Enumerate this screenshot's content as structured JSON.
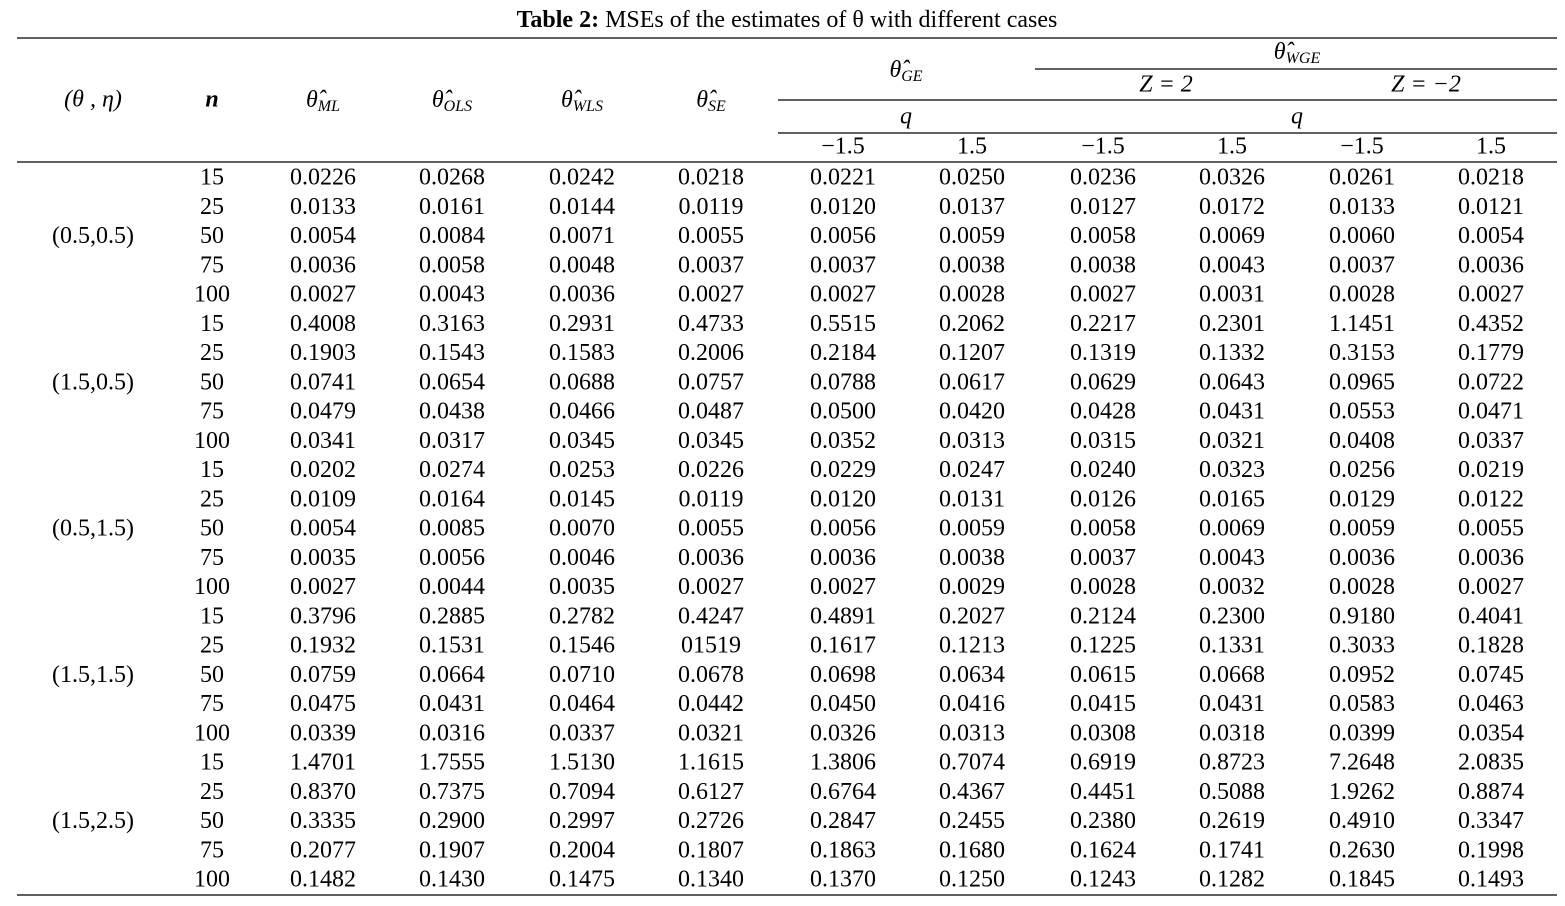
{
  "caption": {
    "label": "Table 2:",
    "text": "MSEs of the estimates of θ with different cases"
  },
  "header": {
    "group_label": "(θ , η)",
    "n": "n",
    "estimators": [
      {
        "symbol": "θ̂",
        "sub": "ML"
      },
      {
        "symbol": "θ̂",
        "sub": "OLS"
      },
      {
        "symbol": "θ̂",
        "sub": "WLS"
      },
      {
        "symbol": "θ̂",
        "sub": "SE"
      }
    ],
    "ge": {
      "symbol": "θ̂",
      "sub": "GE",
      "q": "q",
      "levels": [
        "−1.5",
        "1.5"
      ]
    },
    "wge": {
      "symbol": "θ̂",
      "sub": "WGE",
      "cases": [
        "Z = 2",
        "Z = −2"
      ],
      "q": "q",
      "levels": [
        "−1.5",
        "1.5",
        "−1.5",
        "1.5"
      ]
    }
  },
  "groups": [
    {
      "label": "(0.5,0.5)",
      "rows": [
        [
          "15",
          "0.0226",
          "0.0268",
          "0.0242",
          "0.0218",
          "0.0221",
          "0.0250",
          "0.0236",
          "0.0326",
          "0.0261",
          "0.0218"
        ],
        [
          "25",
          "0.0133",
          "0.0161",
          "0.0144",
          "0.0119",
          "0.0120",
          "0.0137",
          "0.0127",
          "0.0172",
          "0.0133",
          "0.0121"
        ],
        [
          "50",
          "0.0054",
          "0.0084",
          "0.0071",
          "0.0055",
          "0.0056",
          "0.0059",
          "0.0058",
          "0.0069",
          "0.0060",
          "0.0054"
        ],
        [
          "75",
          "0.0036",
          "0.0058",
          "0.0048",
          "0.0037",
          "0.0037",
          "0.0038",
          "0.0038",
          "0.0043",
          "0.0037",
          "0.0036"
        ],
        [
          "100",
          "0.0027",
          "0.0043",
          "0.0036",
          "0.0027",
          "0.0027",
          "0.0028",
          "0.0027",
          "0.0031",
          "0.0028",
          "0.0027"
        ]
      ]
    },
    {
      "label": "(1.5,0.5)",
      "rows": [
        [
          "15",
          "0.4008",
          "0.3163",
          "0.2931",
          "0.4733",
          "0.5515",
          "0.2062",
          "0.2217",
          "0.2301",
          "1.1451",
          "0.4352"
        ],
        [
          "25",
          "0.1903",
          "0.1543",
          "0.1583",
          "0.2006",
          "0.2184",
          "0.1207",
          "0.1319",
          "0.1332",
          "0.3153",
          "0.1779"
        ],
        [
          "50",
          "0.0741",
          "0.0654",
          "0.0688",
          "0.0757",
          "0.0788",
          "0.0617",
          "0.0629",
          "0.0643",
          "0.0965",
          "0.0722"
        ],
        [
          "75",
          "0.0479",
          "0.0438",
          "0.0466",
          "0.0487",
          "0.0500",
          "0.0420",
          "0.0428",
          "0.0431",
          "0.0553",
          "0.0471"
        ],
        [
          "100",
          "0.0341",
          "0.0317",
          "0.0345",
          "0.0345",
          "0.0352",
          "0.0313",
          "0.0315",
          "0.0321",
          "0.0408",
          "0.0337"
        ]
      ]
    },
    {
      "label": "(0.5,1.5)",
      "rows": [
        [
          "15",
          "0.0202",
          "0.0274",
          "0.0253",
          "0.0226",
          "0.0229",
          "0.0247",
          "0.0240",
          "0.0323",
          "0.0256",
          "0.0219"
        ],
        [
          "25",
          "0.0109",
          "0.0164",
          "0.0145",
          "0.0119",
          "0.0120",
          "0.0131",
          "0.0126",
          "0.0165",
          "0.0129",
          "0.0122"
        ],
        [
          "50",
          "0.0054",
          "0.0085",
          "0.0070",
          "0.0055",
          "0.0056",
          "0.0059",
          "0.0058",
          "0.0069",
          "0.0059",
          "0.0055"
        ],
        [
          "75",
          "0.0035",
          "0.0056",
          "0.0046",
          "0.0036",
          "0.0036",
          "0.0038",
          "0.0037",
          "0.0043",
          "0.0036",
          "0.0036"
        ],
        [
          "100",
          "0.0027",
          "0.0044",
          "0.0035",
          "0.0027",
          "0.0027",
          "0.0029",
          "0.0028",
          "0.0032",
          "0.0028",
          "0.0027"
        ]
      ]
    },
    {
      "label": "(1.5,1.5)",
      "rows": [
        [
          "15",
          "0.3796",
          "0.2885",
          "0.2782",
          "0.4247",
          "0.4891",
          "0.2027",
          "0.2124",
          "0.2300",
          "0.9180",
          "0.4041"
        ],
        [
          "25",
          "0.1932",
          "0.1531",
          "0.1546",
          "01519",
          "0.1617",
          "0.1213",
          "0.1225",
          "0.1331",
          "0.3033",
          "0.1828"
        ],
        [
          "50",
          "0.0759",
          "0.0664",
          "0.0710",
          "0.0678",
          "0.0698",
          "0.0634",
          "0.0615",
          "0.0668",
          "0.0952",
          "0.0745"
        ],
        [
          "75",
          "0.0475",
          "0.0431",
          "0.0464",
          "0.0442",
          "0.0450",
          "0.0416",
          "0.0415",
          "0.0431",
          "0.0583",
          "0.0463"
        ],
        [
          "100",
          "0.0339",
          "0.0316",
          "0.0337",
          "0.0321",
          "0.0326",
          "0.0313",
          "0.0308",
          "0.0318",
          "0.0399",
          "0.0354"
        ]
      ]
    },
    {
      "label": "(1.5,2.5)",
      "rows": [
        [
          "15",
          "1.4701",
          "1.7555",
          "1.5130",
          "1.1615",
          "1.3806",
          "0.7074",
          "0.6919",
          "0.8723",
          "7.2648",
          "2.0835"
        ],
        [
          "25",
          "0.8370",
          "0.7375",
          "0.7094",
          "0.6127",
          "0.6764",
          "0.4367",
          "0.4451",
          "0.5088",
          "1.9262",
          "0.8874"
        ],
        [
          "50",
          "0.3335",
          "0.2900",
          "0.2997",
          "0.2726",
          "0.2847",
          "0.2455",
          "0.2380",
          "0.2619",
          "0.4910",
          "0.3347"
        ],
        [
          "75",
          "0.2077",
          "0.1907",
          "0.2004",
          "0.1807",
          "0.1863",
          "0.1680",
          "0.1624",
          "0.1741",
          "0.2630",
          "0.1998"
        ],
        [
          "100",
          "0.1482",
          "0.1430",
          "0.1475",
          "0.1340",
          "0.1370",
          "0.1250",
          "0.1243",
          "0.1282",
          "0.1845",
          "0.1493"
        ]
      ]
    }
  ]
}
